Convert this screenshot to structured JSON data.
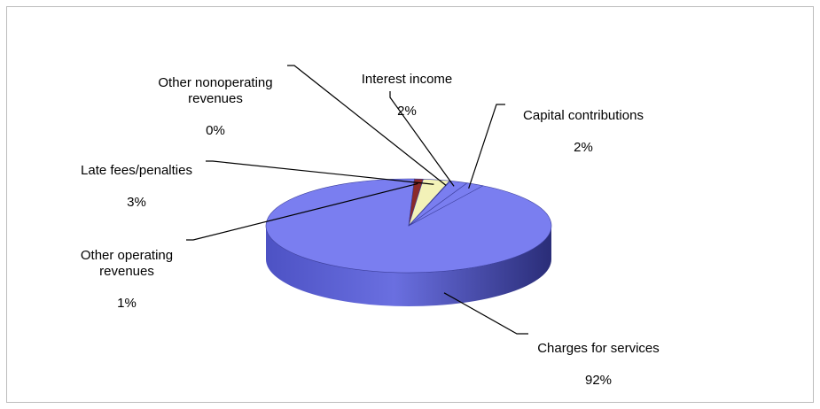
{
  "chart_data": {
    "type": "pie",
    "title": "",
    "slices": [
      {
        "label": "Charges for services",
        "percent": 92,
        "value_label": "92%",
        "color": "#7a7ef0"
      },
      {
        "label": "Other operating revenues",
        "percent": 1,
        "value_label": "1%",
        "color": "#8b2a2a"
      },
      {
        "label": "Late fees/penalties",
        "percent": 3,
        "value_label": "3%",
        "color": "#f3f2b8"
      },
      {
        "label": "Other nonoperating revenues",
        "percent": 0,
        "value_label": "0%",
        "color": "#bfe7ef"
      },
      {
        "label": "Interest income",
        "percent": 2,
        "value_label": "2%",
        "color": "#7a7ef0"
      },
      {
        "label": "Capital contributions",
        "percent": 2,
        "value_label": "2%",
        "color": "#7a7ef0"
      }
    ],
    "three_d": true,
    "legend": "none"
  }
}
